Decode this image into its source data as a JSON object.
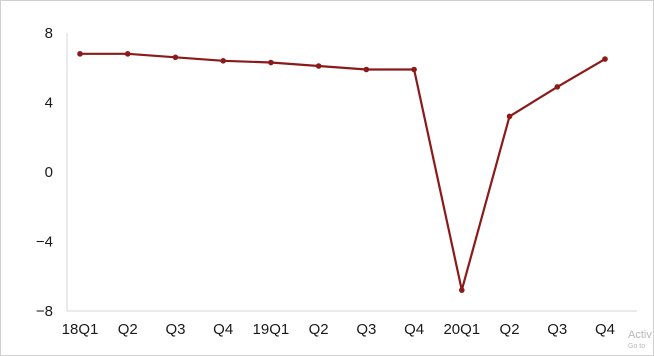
{
  "chart_data": {
    "type": "line",
    "title": "",
    "xlabel": "",
    "ylabel": "",
    "categories": [
      "18Q1",
      "Q2",
      "Q3",
      "Q4",
      "19Q1",
      "Q2",
      "Q3",
      "Q4",
      "20Q1",
      "Q2",
      "Q3",
      "Q4"
    ],
    "series": [
      {
        "name": "",
        "color": "#8b1a1a",
        "values": [
          6.8,
          6.8,
          6.6,
          6.4,
          6.3,
          6.1,
          5.9,
          5.9,
          -6.8,
          3.2,
          4.9,
          6.5
        ]
      }
    ],
    "ylim": [
      -8,
      8
    ],
    "yticks": [
      8,
      4,
      0,
      -4,
      -8
    ],
    "ytick_labels": [
      "8",
      "4",
      "0",
      "−4",
      "−8"
    ],
    "grid": false,
    "legend": "none"
  },
  "watermark": {
    "line1": "Activ",
    "line2": "Go to"
  }
}
